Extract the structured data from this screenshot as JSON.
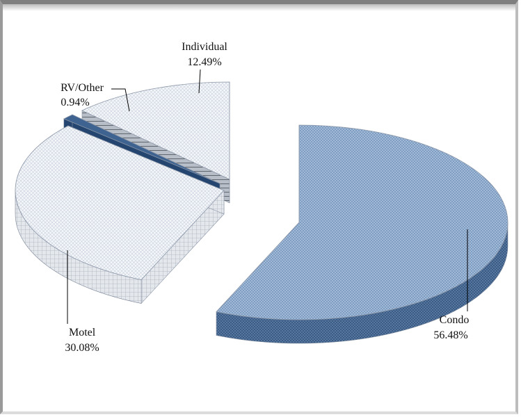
{
  "chart_data": {
    "type": "pie",
    "title": "",
    "slices": [
      {
        "label": "Condo",
        "value": 56.48,
        "percent": "56.48%",
        "color": "#a9c1dd"
      },
      {
        "label": "Motel",
        "value": 30.08,
        "percent": "30.08%",
        "color": "#eef1f6"
      },
      {
        "label": "RV/Other",
        "value": 0.94,
        "percent": "0.94%",
        "color": "#3e6391"
      },
      {
        "label": "Individual",
        "value": 12.49,
        "percent": "12.49%",
        "color": "#e6ecf4"
      }
    ]
  }
}
